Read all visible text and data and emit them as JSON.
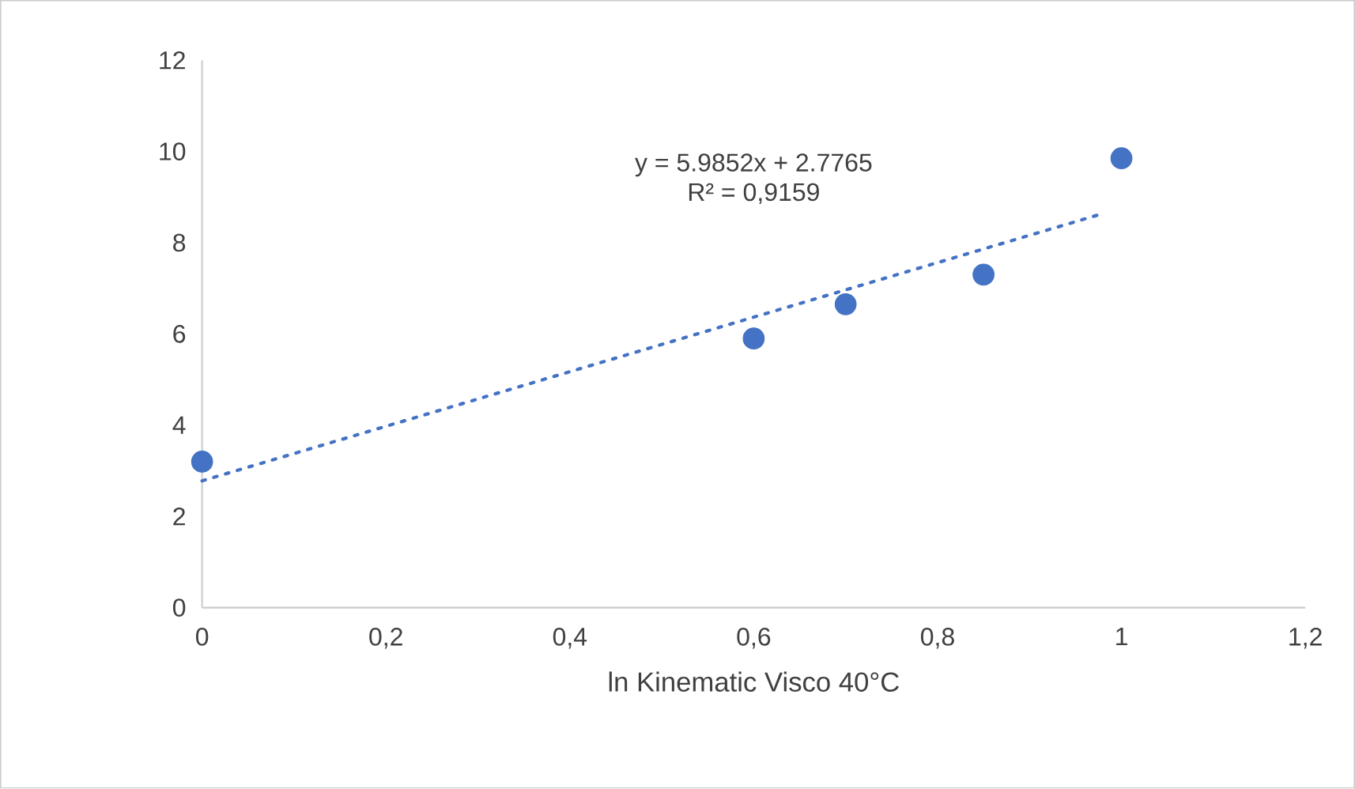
{
  "chart_data": {
    "type": "scatter",
    "xlabel": "ln Kinematic Visco 40°C",
    "series": [
      {
        "color": "#4472c4",
        "marker": "circle",
        "x": [
          0,
          0.6,
          0.7,
          0.85,
          1
        ],
        "values": [
          3.2,
          5.9,
          6.65,
          7.3,
          9.85
        ]
      },
      {
        "type": "line",
        "color": "#4472c4",
        "marker": "none",
        "line_style": "dotted",
        "x": [
          0,
          0.98
        ],
        "values": [
          2.78,
          8.64
        ]
      }
    ],
    "annotations": [
      "y = 5.9852x + 2.7765",
      "R² = 0,9159"
    ],
    "xlim": [
      0,
      1.2
    ],
    "ylim": [
      0,
      12
    ],
    "xticks": [
      0,
      {
        "value": 0.2,
        "label": "0,2"
      },
      {
        "value": 0.4,
        "label": "0,4"
      },
      {
        "value": 0.6,
        "label": "0,6"
      },
      {
        "value": 0.8,
        "label": "0,8"
      },
      1,
      {
        "value": 1.2,
        "label": "1,2"
      }
    ],
    "yticks": [
      0,
      2,
      4,
      6,
      8,
      10,
      12
    ],
    "grid": false
  }
}
